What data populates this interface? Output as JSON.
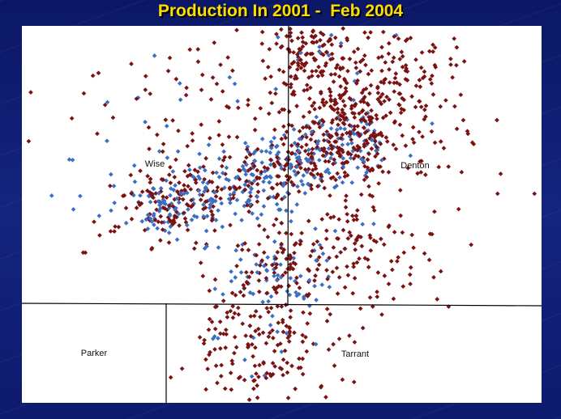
{
  "title": "Production In 2001 -  Feb 2004",
  "counties": [
    "Wise",
    "Denton",
    "Parker",
    "Tarrant"
  ]
}
